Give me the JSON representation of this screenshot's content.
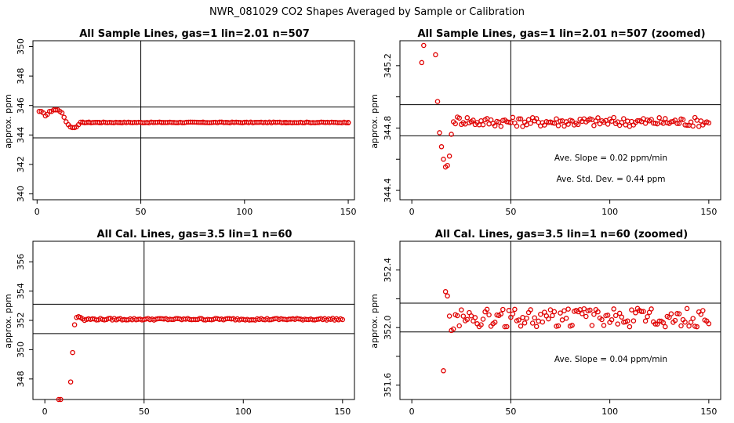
{
  "figure_title": "NWR_081029  CO2 Shapes Averaged by Sample or Calibration",
  "chart_data": [
    {
      "type": "scatter",
      "title": "All Sample Lines, gas=1 lin=2.01 n=507",
      "xlabel": "",
      "ylabel": "approx. ppm",
      "xlim": [
        -2,
        153
      ],
      "ylim": [
        339.6,
        350.4
      ],
      "xticks": [
        0,
        50,
        100,
        150
      ],
      "yticks": [
        340,
        342,
        344,
        346,
        348,
        350
      ],
      "hlines": [
        345.9,
        343.8
      ],
      "vline": 50,
      "marker_color": "#e00000",
      "annotations": [],
      "points_formula": {
        "x_start": 1,
        "x_end": 150,
        "description": "initial ~345.6 dip to ~344.5 near x=18 then flat ~344.85"
      },
      "series": [
        {
          "x": [
            1,
            2,
            3,
            4,
            5,
            6,
            7,
            8,
            9,
            10,
            11,
            12,
            13,
            14,
            15,
            16,
            17,
            18,
            19,
            20,
            22,
            25,
            30,
            40,
            60,
            80,
            100,
            120,
            150
          ],
          "y": [
            345.6,
            345.6,
            345.5,
            345.3,
            345.4,
            345.6,
            345.6,
            345.7,
            345.7,
            345.7,
            345.6,
            345.5,
            345.2,
            344.9,
            344.7,
            344.55,
            344.5,
            344.5,
            344.55,
            344.7,
            344.85,
            344.85,
            344.85,
            344.85,
            344.85,
            344.85,
            344.85,
            344.85,
            344.85
          ]
        }
      ]
    },
    {
      "type": "scatter",
      "title": "All Sample Lines, gas=1 lin=2.01 n=507 (zoomed)",
      "xlabel": "",
      "ylabel": "approx. ppm",
      "xlim": [
        -6,
        156
      ],
      "ylim": [
        344.34,
        345.36
      ],
      "xticks": [
        0,
        50,
        100,
        150
      ],
      "yticks": [
        344.4,
        344.6,
        344.8,
        345.0,
        345.2
      ],
      "ytick_labels": [
        "344.4",
        "",
        "344.8",
        "",
        "345.2"
      ],
      "hlines": [
        344.95,
        344.75
      ],
      "vline": 50,
      "marker_color": "#e00000",
      "annotations": [
        "Ave. Slope =  0.02  ppm/min",
        "Ave. Std. Dev. =  0.44  ppm"
      ],
      "series": [
        {
          "x": [
            5,
            6,
            12,
            13,
            14,
            15,
            16,
            17,
            18,
            19,
            20,
            21
          ],
          "y": [
            345.22,
            345.33,
            345.27,
            344.97,
            344.77,
            344.68,
            344.6,
            344.55,
            344.56,
            344.62,
            344.76,
            344.84
          ]
        }
      ]
    },
    {
      "type": "scatter",
      "title": "All Cal. Lines, gas=3.5 lin=1 n=60",
      "xlabel": "",
      "ylabel": "approx. ppm",
      "xlim": [
        -6,
        156
      ],
      "ylim": [
        346.6,
        357.4
      ],
      "xticks": [
        0,
        50,
        100,
        150
      ],
      "yticks": [
        348,
        350,
        352,
        354,
        356
      ],
      "hlines": [
        353.1,
        351.1
      ],
      "vline": 50,
      "marker_color": "#e00000",
      "annotations": [],
      "series": [
        {
          "x": [
            7,
            8,
            13,
            14,
            15,
            16,
            17,
            18,
            19,
            20
          ],
          "y": [
            346.6,
            346.6,
            347.8,
            349.8,
            351.7,
            352.2,
            352.25,
            352.2,
            352.1,
            352.0
          ]
        }
      ]
    },
    {
      "type": "scatter",
      "title": "All Cal. Lines, gas=3.5 lin=1 n=60 (zoomed)",
      "xlabel": "",
      "ylabel": "approx. ppm",
      "xlim": [
        -6,
        156
      ],
      "ylim": [
        351.5,
        352.6
      ],
      "xticks": [
        0,
        50,
        100,
        150
      ],
      "yticks": [
        351.6,
        351.8,
        352.0,
        352.2,
        352.4
      ],
      "ytick_labels": [
        "351.6",
        "",
        "352.0",
        "",
        "352.4"
      ],
      "hlines": [
        352.17,
        351.97
      ],
      "vline": 50,
      "marker_color": "#e00000",
      "annotations": [
        "Ave. Slope =  0.04  ppm/min"
      ],
      "series": [
        {
          "x": [
            16,
            17,
            18,
            19,
            20,
            21,
            22
          ],
          "y": [
            351.7,
            352.25,
            352.22,
            352.08,
            351.98,
            351.99,
            352.09
          ]
        }
      ]
    }
  ]
}
